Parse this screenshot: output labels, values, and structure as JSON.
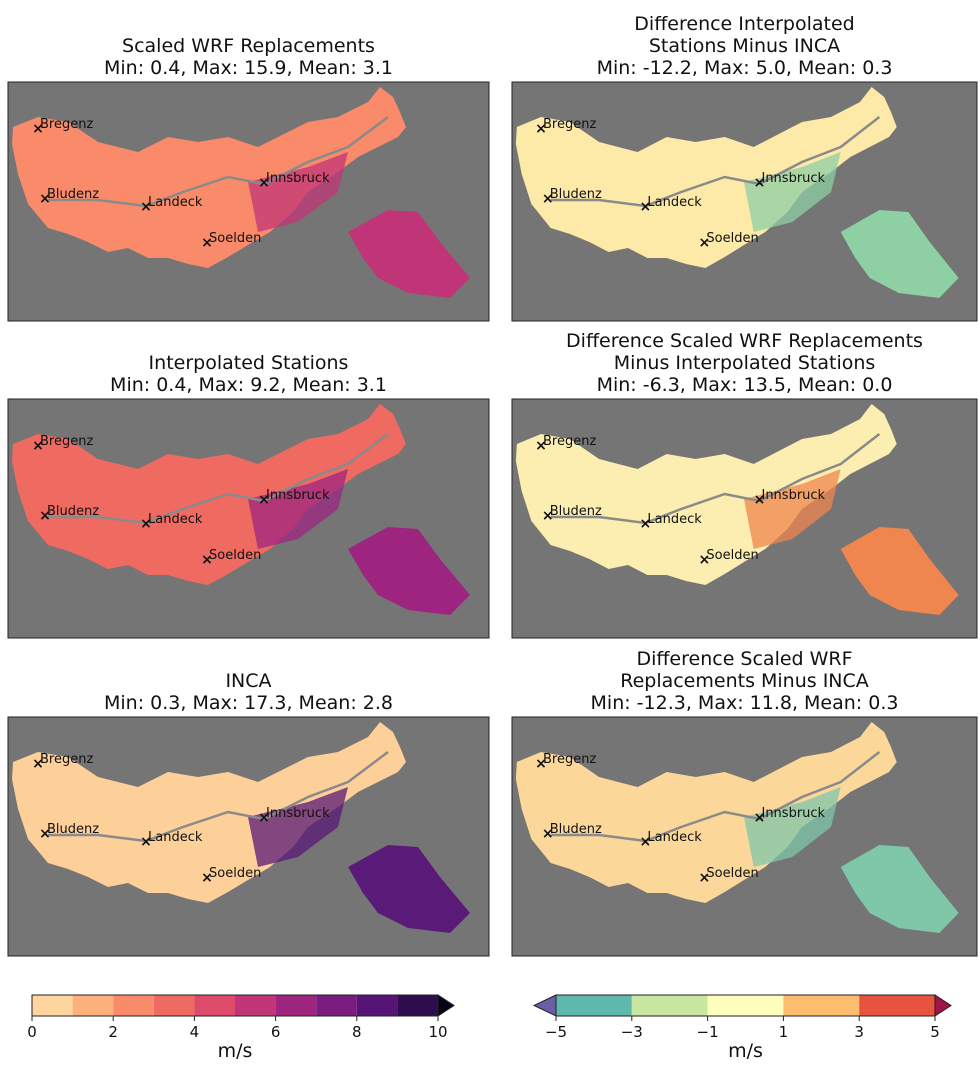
{
  "panels": [
    {
      "title": [
        "Scaled WRF Replacements",
        "Min: 0.4, Max:  15.9,  Mean: 3.1"
      ]
    },
    {
      "title": [
        "Difference Interpolated",
        "Stations Minus INCA",
        "Min: -12.2, Max:  5.0,  Mean: 0.3"
      ]
    },
    {
      "title": [
        "Interpolated Stations",
        "Min: 0.4, Max:  9.2,  Mean: 3.1"
      ]
    },
    {
      "title": [
        "Difference Scaled WRF Replacements",
        "Minus Interpolated Stations",
        "Min: -6.3, Max:  13.5,  Mean: 0.0"
      ]
    },
    {
      "title": [
        "INCA",
        "Min: 0.3, Max:  17.3,  Mean: 2.8"
      ]
    },
    {
      "title": [
        "Difference Scaled WRF",
        "Replacements Minus INCA",
        "Min: -12.3, Max:  11.8,  Mean: 0.3"
      ]
    }
  ],
  "stations": [
    "Bregenz",
    "Bludenz",
    "Landeck",
    "Innsbruck",
    "Soelden"
  ],
  "colorbars": [
    {
      "boundaries": [
        0,
        1,
        2,
        3,
        4,
        5,
        6,
        7,
        8,
        9,
        10
      ],
      "colors": [
        "#fdd59d",
        "#fdb07c",
        "#f98b6a",
        "#ef6a61",
        "#dd4a6a",
        "#c03577",
        "#9d2580",
        "#7a1b80",
        "#561576",
        "#2e0d4e"
      ],
      "over_color": "#050416",
      "ticks": [
        0,
        2,
        4,
        6,
        8,
        10
      ],
      "label": "m/s"
    },
    {
      "boundaries": [
        -5,
        -3,
        -1,
        1,
        3,
        5
      ],
      "colors": [
        "#5fb8ac",
        "#c8e7a0",
        "#fefebd",
        "#fdbd6f",
        "#e8533f"
      ],
      "under_color": "#6b5ea8",
      "over_color": "#a3124a",
      "ticks": [
        {
          "value": -5,
          "label": "−5"
        },
        {
          "value": -3,
          "label": "−3"
        },
        {
          "value": -1,
          "label": "−1"
        },
        1,
        3,
        5
      ],
      "label": "m/s"
    }
  ]
}
